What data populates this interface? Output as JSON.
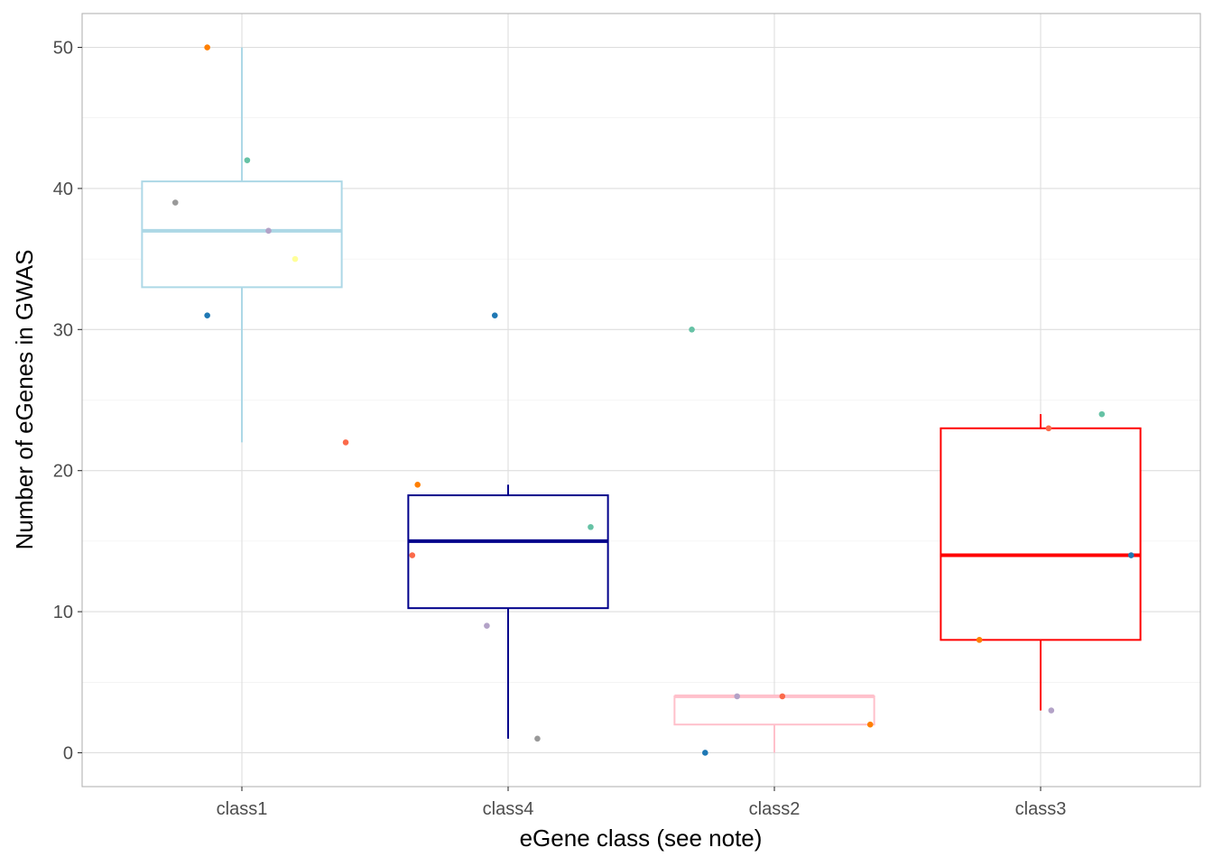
{
  "chart_data": {
    "type": "box",
    "xlabel": "eGene class (see note)",
    "ylabel": "Number of eGenes in GWAS",
    "ylim": [
      -2.4,
      52.4
    ],
    "yticks": [
      0,
      10,
      20,
      30,
      40,
      50
    ],
    "grid": true,
    "legend": "none",
    "categories": [
      "class1",
      "class4",
      "class2",
      "class3"
    ],
    "boxes": [
      {
        "category": "class1",
        "color": "#add8e6",
        "q1": 33,
        "median": 37,
        "q3": 40.5,
        "whisker_low": 22,
        "whisker_high": 50,
        "points": [
          {
            "value": 50,
            "color": "#ff7f00",
            "jitter": -0.13
          },
          {
            "value": 42,
            "color": "#66c2a5",
            "jitter": 0.02
          },
          {
            "value": 39,
            "color": "#999999",
            "jitter": -0.25
          },
          {
            "value": 37,
            "color": "#b3a2c7",
            "jitter": 0.1
          },
          {
            "value": 35,
            "color": "#ffff99",
            "jitter": 0.2
          },
          {
            "value": 31,
            "color": "#1f78b4",
            "jitter": -0.13
          },
          {
            "value": 22,
            "color": "#fb6a4a",
            "jitter": 0.39
          }
        ]
      },
      {
        "category": "class4",
        "color": "#00008b",
        "q1": 10.25,
        "median": 15,
        "q3": 18.25,
        "whisker_low": 1,
        "whisker_high": 19,
        "points": [
          {
            "value": 31,
            "color": "#1f78b4",
            "jitter": -0.05
          },
          {
            "value": 19,
            "color": "#ff7f00",
            "jitter": -0.34
          },
          {
            "value": 16,
            "color": "#66c2a5",
            "jitter": 0.31
          },
          {
            "value": 14,
            "color": "#fb6a4a",
            "jitter": -0.36
          },
          {
            "value": 9,
            "color": "#b3a2c7",
            "jitter": -0.08
          },
          {
            "value": 1,
            "color": "#999999",
            "jitter": 0.11
          }
        ]
      },
      {
        "category": "class2",
        "color": "#ffc0cb",
        "q1": 2,
        "median": 4,
        "q3": 4,
        "whisker_low": 0,
        "whisker_high": 4,
        "points": [
          {
            "value": 30,
            "color": "#66c2a5",
            "jitter": -0.31
          },
          {
            "value": 4,
            "color": "#b3a2c7",
            "jitter": -0.14
          },
          {
            "value": 4,
            "color": "#fb6a4a",
            "jitter": 0.03
          },
          {
            "value": 2,
            "color": "#ff7f00",
            "jitter": 0.36
          },
          {
            "value": 0,
            "color": "#1f78b4",
            "jitter": -0.26
          }
        ]
      },
      {
        "category": "class3",
        "color": "#ff0000",
        "q1": 8,
        "median": 14,
        "q3": 23,
        "whisker_low": 3,
        "whisker_high": 24,
        "points": [
          {
            "value": 24,
            "color": "#66c2a5",
            "jitter": 0.23
          },
          {
            "value": 23,
            "color": "#fb6a4a",
            "jitter": 0.03
          },
          {
            "value": 14,
            "color": "#1f78b4",
            "jitter": 0.34
          },
          {
            "value": 8,
            "color": "#ff7f00",
            "jitter": -0.23
          },
          {
            "value": 3,
            "color": "#b3a2c7",
            "jitter": 0.04
          }
        ]
      }
    ]
  }
}
